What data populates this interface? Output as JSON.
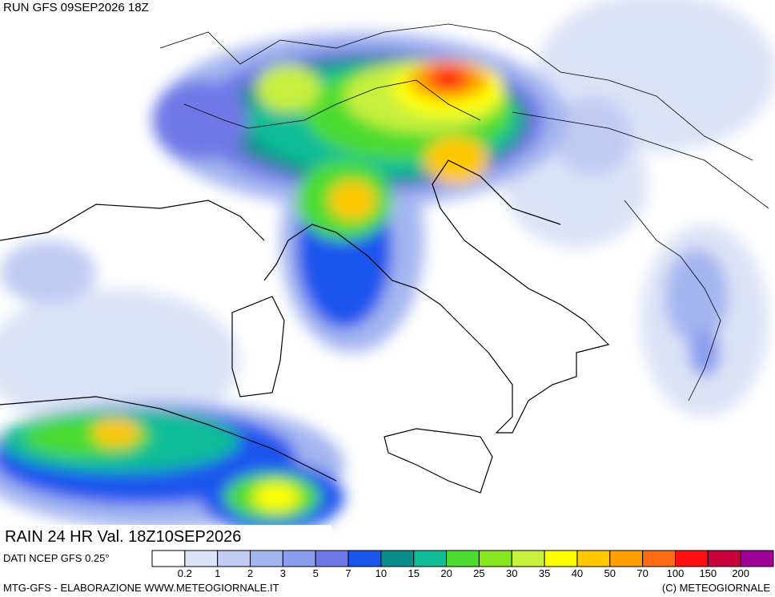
{
  "header": {
    "run": "RUN GFS 09SEP2026 18Z",
    "field": "RAIN 24 HR Val. 18Z10SEP2026",
    "source": "DATI NCEP GFS 0.25°"
  },
  "footer": {
    "credit": "MTG-GFS - ELABORAZIONE WWW.METEOGIORNALE.IT",
    "copyright": "(C) METEOGIORNALE"
  },
  "legend": {
    "levels": [
      0.2,
      1,
      2,
      3,
      5,
      7,
      10,
      15,
      20,
      25,
      30,
      35,
      40,
      50,
      70,
      100,
      150,
      200
    ],
    "colors": [
      "#ffffff",
      "#dde3f7",
      "#c0ccf3",
      "#a4b6f0",
      "#8a9cee",
      "#6f78e6",
      "#1c54ee",
      "#0a8c8c",
      "#10bc98",
      "#4cdc32",
      "#88e61e",
      "#c8f03c",
      "#ffff00",
      "#ffc800",
      "#ffa000",
      "#ff6a14",
      "#ff1010",
      "#c8003c",
      "#a00096"
    ]
  }
}
